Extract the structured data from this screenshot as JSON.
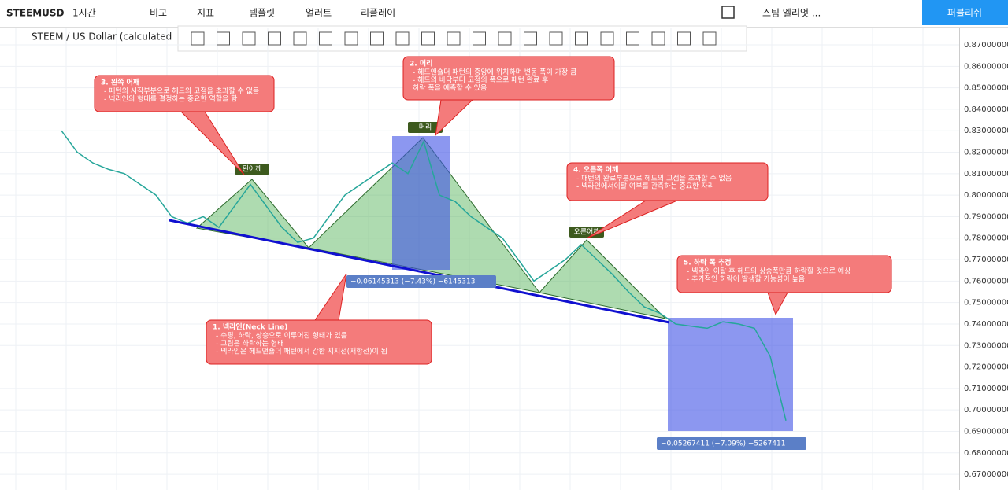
{
  "toolbar": {
    "symbol": "STEEMUSD",
    "interval": "1시간",
    "items": [
      "비교",
      "지표",
      "템플릿",
      "얼러트",
      "리플레이"
    ],
    "layout": "스팀 엘리엇 ...",
    "publish": "퍼블리쉬"
  },
  "chart": {
    "legend": "STEEM / US Dollar (calculated",
    "ylim": [
      0.6627,
      0.8777
    ],
    "yticks": [
      {
        "value": 0.87,
        "label": "0.87000000"
      },
      {
        "value": 0.86,
        "label": "0.86000000"
      },
      {
        "value": 0.85,
        "label": "0.85000000"
      },
      {
        "value": 0.84,
        "label": "0.84000000"
      },
      {
        "value": 0.83,
        "label": "0.83000000"
      },
      {
        "value": 0.82,
        "label": "0.82000000"
      },
      {
        "value": 0.81,
        "label": "0.81000000"
      },
      {
        "value": 0.8,
        "label": "0.80000000"
      },
      {
        "value": 0.79,
        "label": "0.79000000"
      },
      {
        "value": 0.78,
        "label": "0.78000000"
      },
      {
        "value": 0.77,
        "label": "0.77000000"
      },
      {
        "value": 0.76,
        "label": "0.76000000"
      },
      {
        "value": 0.75,
        "label": "0.75000000"
      },
      {
        "value": 0.74,
        "label": "0.74000000"
      },
      {
        "value": 0.73,
        "label": "0.73000000"
      },
      {
        "value": 0.72,
        "label": "0.72000000"
      },
      {
        "value": 0.71,
        "label": "0.71000000"
      },
      {
        "value": 0.7,
        "label": "0.70000000"
      },
      {
        "value": 0.69,
        "label": "0.69000000"
      },
      {
        "value": 0.68,
        "label": "0.68000000"
      },
      {
        "value": 0.67,
        "label": "0.67000000"
      }
    ],
    "price": [
      0.83,
      0.82,
      0.815,
      0.812,
      0.81,
      0.805,
      0.8,
      0.79,
      0.787,
      0.79,
      0.785,
      0.795,
      0.805,
      0.795,
      0.785,
      0.778,
      0.78,
      0.79,
      0.8,
      0.805,
      0.81,
      0.815,
      0.81,
      0.825,
      0.8,
      0.797,
      0.79,
      0.785,
      0.78,
      0.77,
      0.76,
      0.765,
      0.77,
      0.777,
      0.77,
      0.763,
      0.755,
      0.748,
      0.745,
      0.74,
      0.739,
      0.738,
      0.741,
      0.74,
      0.738,
      0.725,
      0.695
    ],
    "labels": [
      "왼어깨",
      "머리",
      "오른어깨"
    ],
    "measures": [
      "−0.06145313 (−7.43%) −6145313",
      "−0.05267411 (−7.09%) −5267411"
    ]
  },
  "callouts": [
    {
      "title": "3. 왼쪽 어깨",
      "lines": [
        "- 패턴의 시작부분으로 헤드의 고점을 초과할 수 없음",
        "- 넥라인의 형태를 결정하는 중요한 역할을 함"
      ]
    },
    {
      "title": "2. 머리",
      "lines": [
        "- 헤드앤숄더 패턴의 중앙에 위치하며 변동 폭이 가장 큼",
        "- 헤드의 바닥부터 고점의 폭으로 패턴 완료 후",
        "하락 폭을 예측할 수 있음"
      ]
    },
    {
      "title": "4. 오른쪽 어깨",
      "lines": [
        "- 패턴의 완료부분으로 헤드의 고점을 초과할 수 없음",
        "- 넥라인에서이탈 여부를 관측하는 중요한 자리"
      ]
    },
    {
      "title": "1. 넥라인(Neck Line)",
      "lines": [
        "- 수평, 하락, 상승으로 이루어진 형태가 있음",
        "- 그림은 하락하는 형태",
        "- 넥라인은 헤드앤숄더 패턴에서 강한 지지선(저항선)이 됨"
      ]
    },
    {
      "title": "5. 하락 폭 추정",
      "lines": [
        "- 넥라인 이탈 후 헤드의 상승폭만큼 하락할 것으로 예상",
        "- 추가적인 하락이 발생할 가능성이 높음"
      ]
    }
  ]
}
